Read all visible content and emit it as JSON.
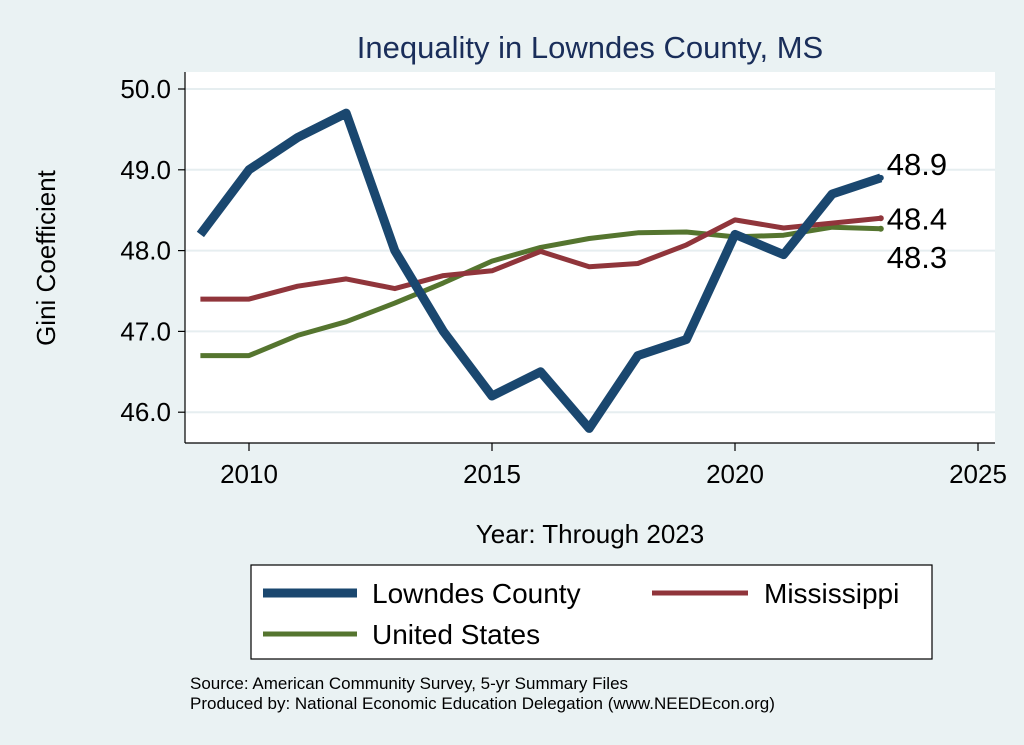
{
  "chart_data": {
    "type": "line",
    "title": "Inequality in Lowndes County, MS",
    "xlabel": "Year: Through 2023",
    "ylabel": "Gini Coefficient",
    "xlim": [
      2009,
      2025
    ],
    "ylim": [
      45.6,
      50.2
    ],
    "xticks": [
      2010,
      2015,
      2020,
      2025
    ],
    "yticks": [
      50.0,
      49.0,
      48.0,
      47.0,
      46.0
    ],
    "grid": true,
    "legend_position": "bottom",
    "series": [
      {
        "name": "Lowndes County",
        "color": "#1a476f",
        "x": [
          2009,
          2010,
          2011,
          2012,
          2013,
          2014,
          2015,
          2016,
          2017,
          2018,
          2019,
          2020,
          2021,
          2022,
          2023
        ],
        "values": [
          48.2,
          49.0,
          49.4,
          49.7,
          48.0,
          47.0,
          46.2,
          46.5,
          45.8,
          46.7,
          46.9,
          48.2,
          47.95,
          48.7,
          48.9
        ],
        "end_label": "48.9"
      },
      {
        "name": "Mississippi",
        "color": "#90353b",
        "x": [
          2009,
          2010,
          2011,
          2012,
          2013,
          2014,
          2015,
          2016,
          2017,
          2018,
          2019,
          2020,
          2021,
          2022,
          2023
        ],
        "values": [
          47.4,
          47.4,
          47.56,
          47.65,
          47.53,
          47.69,
          47.75,
          47.99,
          47.8,
          47.84,
          48.07,
          48.38,
          48.28,
          48.34,
          48.4
        ],
        "end_label": "48.4"
      },
      {
        "name": "United States",
        "color": "#55752f",
        "x": [
          2009,
          2010,
          2011,
          2012,
          2013,
          2014,
          2015,
          2016,
          2017,
          2018,
          2019,
          2020,
          2021,
          2022,
          2023
        ],
        "values": [
          46.7,
          46.7,
          46.95,
          47.12,
          47.35,
          47.6,
          47.87,
          48.04,
          48.15,
          48.22,
          48.23,
          48.17,
          48.19,
          48.29,
          48.27
        ],
        "end_label": "48.3"
      }
    ],
    "source_lines": [
      "Source: American Community Survey, 5-yr Summary Files",
      "Produced by: National Economic Education Delegation (www.NEEDEcon.org)"
    ]
  }
}
